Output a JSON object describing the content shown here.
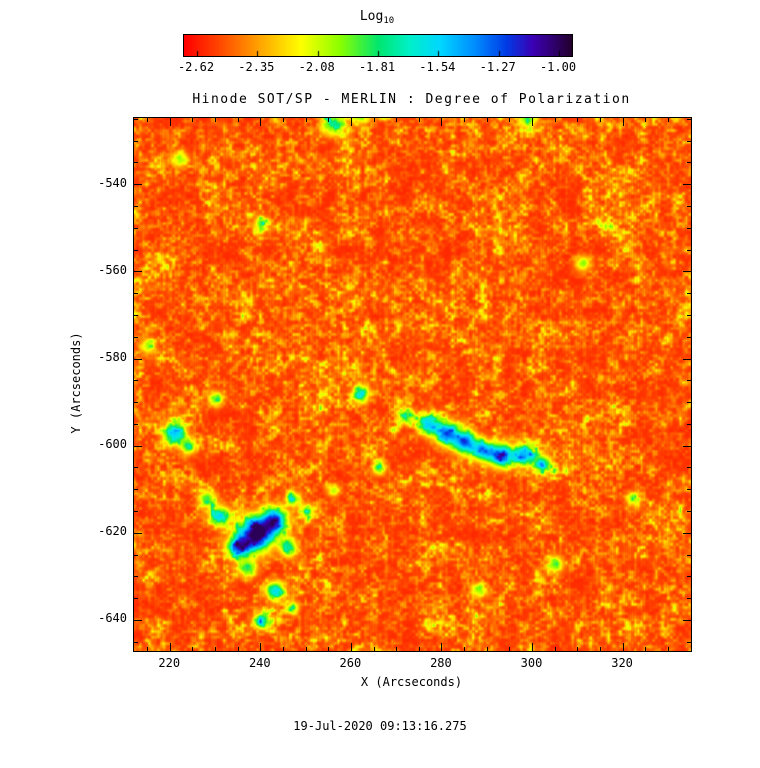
{
  "title": "Hinode SOT/SP - MERLIN : Degree of Polarization",
  "timestamp": "19-Jul-2020 09:13:16.275",
  "colorbar": {
    "label": "Log",
    "label_subscript": "10",
    "tick_labels": [
      "-2.62",
      "-2.35",
      "-2.08",
      "-1.81",
      "-1.54",
      "-1.27",
      "-1.00"
    ]
  },
  "axes": {
    "xlabel": "X (Arcseconds)",
    "ylabel": "Y (Arcseconds)",
    "x_tick_labels": [
      "220",
      "240",
      "260",
      "280",
      "300",
      "320"
    ],
    "y_tick_labels": [
      "-540",
      "-560",
      "-580",
      "-600",
      "-620",
      "-640"
    ]
  },
  "chart_data": {
    "type": "heatmap",
    "title": "Hinode SOT/SP - MERLIN : Degree of Polarization",
    "xlabel": "X (Arcseconds)",
    "ylabel": "Y (Arcseconds)",
    "value_label": "Log10 Degree of Polarization",
    "value_range": [
      -2.62,
      -1.0
    ],
    "value_ticks": [
      -2.62,
      -2.35,
      -2.08,
      -1.81,
      -1.54,
      -1.27,
      -1.0
    ],
    "xlim": [
      212,
      335
    ],
    "ylim": [
      -647,
      -524.7
    ],
    "x_ticks": [
      220,
      240,
      260,
      280,
      300,
      320
    ],
    "y_ticks": [
      -540,
      -560,
      -580,
      -600,
      -620,
      -640
    ],
    "minor_tick_step": 5,
    "background_log10_level": [
      -2.62,
      -2.2
    ],
    "colormap": [
      {
        "t": 0.0,
        "rgb": [
          255,
          0,
          0
        ]
      },
      {
        "t": 0.1,
        "rgb": [
          255,
          80,
          0
        ]
      },
      {
        "t": 0.2,
        "rgb": [
          255,
          170,
          0
        ]
      },
      {
        "t": 0.3,
        "rgb": [
          255,
          255,
          0
        ]
      },
      {
        "t": 0.4,
        "rgb": [
          140,
          255,
          0
        ]
      },
      {
        "t": 0.5,
        "rgb": [
          0,
          230,
          110
        ]
      },
      {
        "t": 0.58,
        "rgb": [
          0,
          240,
          200
        ]
      },
      {
        "t": 0.66,
        "rgb": [
          0,
          215,
          255
        ]
      },
      {
        "t": 0.75,
        "rgb": [
          0,
          140,
          255
        ]
      },
      {
        "t": 0.83,
        "rgb": [
          0,
          60,
          230
        ]
      },
      {
        "t": 0.9,
        "rgb": [
          60,
          0,
          180
        ]
      },
      {
        "t": 1.0,
        "rgb": [
          35,
          0,
          45
        ]
      }
    ],
    "features": [
      {
        "x": 239,
        "y": -620,
        "sigma": 2.6,
        "amp": 0.92
      },
      {
        "x": 243,
        "y": -617,
        "sigma": 2.0,
        "amp": 0.7
      },
      {
        "x": 235,
        "y": -623,
        "sigma": 1.8,
        "amp": 0.65
      },
      {
        "x": 231,
        "y": -616,
        "sigma": 1.6,
        "amp": 0.5
      },
      {
        "x": 246,
        "y": -623,
        "sigma": 1.4,
        "amp": 0.45
      },
      {
        "x": 237,
        "y": -628,
        "sigma": 1.4,
        "amp": 0.4
      },
      {
        "x": 228,
        "y": -612,
        "sigma": 1.4,
        "amp": 0.35
      },
      {
        "x": 250,
        "y": -615,
        "sigma": 1.2,
        "amp": 0.3
      },
      {
        "x": 277,
        "y": -595,
        "sigma": 1.6,
        "amp": 0.55
      },
      {
        "x": 281,
        "y": -597,
        "sigma": 1.8,
        "amp": 0.7
      },
      {
        "x": 285,
        "y": -599,
        "sigma": 1.8,
        "amp": 0.72
      },
      {
        "x": 289,
        "y": -601,
        "sigma": 1.6,
        "amp": 0.6
      },
      {
        "x": 293,
        "y": -602,
        "sigma": 1.9,
        "amp": 0.7
      },
      {
        "x": 298,
        "y": -602,
        "sigma": 1.6,
        "amp": 0.6
      },
      {
        "x": 302,
        "y": -604,
        "sigma": 1.4,
        "amp": 0.5
      },
      {
        "x": 272,
        "y": -593,
        "sigma": 1.2,
        "amp": 0.35
      },
      {
        "x": 221,
        "y": -597,
        "sigma": 1.7,
        "amp": 0.6
      },
      {
        "x": 224,
        "y": -600,
        "sigma": 1.2,
        "amp": 0.4
      },
      {
        "x": 243,
        "y": -633,
        "sigma": 1.4,
        "amp": 0.55
      },
      {
        "x": 240,
        "y": -640,
        "sigma": 1.2,
        "amp": 0.5
      },
      {
        "x": 247,
        "y": -637,
        "sigma": 1.0,
        "amp": 0.35
      },
      {
        "x": 247,
        "y": -612,
        "sigma": 1.1,
        "amp": 0.4
      },
      {
        "x": 262,
        "y": -588,
        "sigma": 1.3,
        "amp": 0.45
      },
      {
        "x": 266,
        "y": -605,
        "sigma": 1.1,
        "amp": 0.35
      },
      {
        "x": 256,
        "y": -610,
        "sigma": 1.0,
        "amp": 0.3
      },
      {
        "x": 256,
        "y": -526,
        "sigma": 1.8,
        "amp": 0.4
      },
      {
        "x": 262,
        "y": -524,
        "sigma": 1.4,
        "amp": 0.35
      },
      {
        "x": 299,
        "y": -525,
        "sigma": 1.4,
        "amp": 0.35
      },
      {
        "x": 222,
        "y": -534,
        "sigma": 1.3,
        "amp": 0.3
      },
      {
        "x": 240,
        "y": -549,
        "sigma": 1.2,
        "amp": 0.3
      },
      {
        "x": 311,
        "y": -558,
        "sigma": 1.3,
        "amp": 0.3
      },
      {
        "x": 305,
        "y": -627,
        "sigma": 1.3,
        "amp": 0.35
      },
      {
        "x": 288,
        "y": -633,
        "sigma": 1.2,
        "amp": 0.3
      },
      {
        "x": 322,
        "y": -612,
        "sigma": 1.1,
        "amp": 0.3
      },
      {
        "x": 215,
        "y": -577,
        "sigma": 1.2,
        "amp": 0.3
      },
      {
        "x": 230,
        "y": -589,
        "sigma": 1.2,
        "amp": 0.35
      }
    ],
    "render": {
      "seed": 7,
      "octaves": [
        {
          "cell": 3,
          "weight": 0.32
        },
        {
          "cell": 6,
          "weight": 0.27
        },
        {
          "cell": 13,
          "weight": 0.22
        },
        {
          "cell": 27,
          "weight": 0.19
        }
      ],
      "base": 0.05,
      "gain": 0.52,
      "power": 3.0,
      "stripe_amp": 0.06
    }
  }
}
